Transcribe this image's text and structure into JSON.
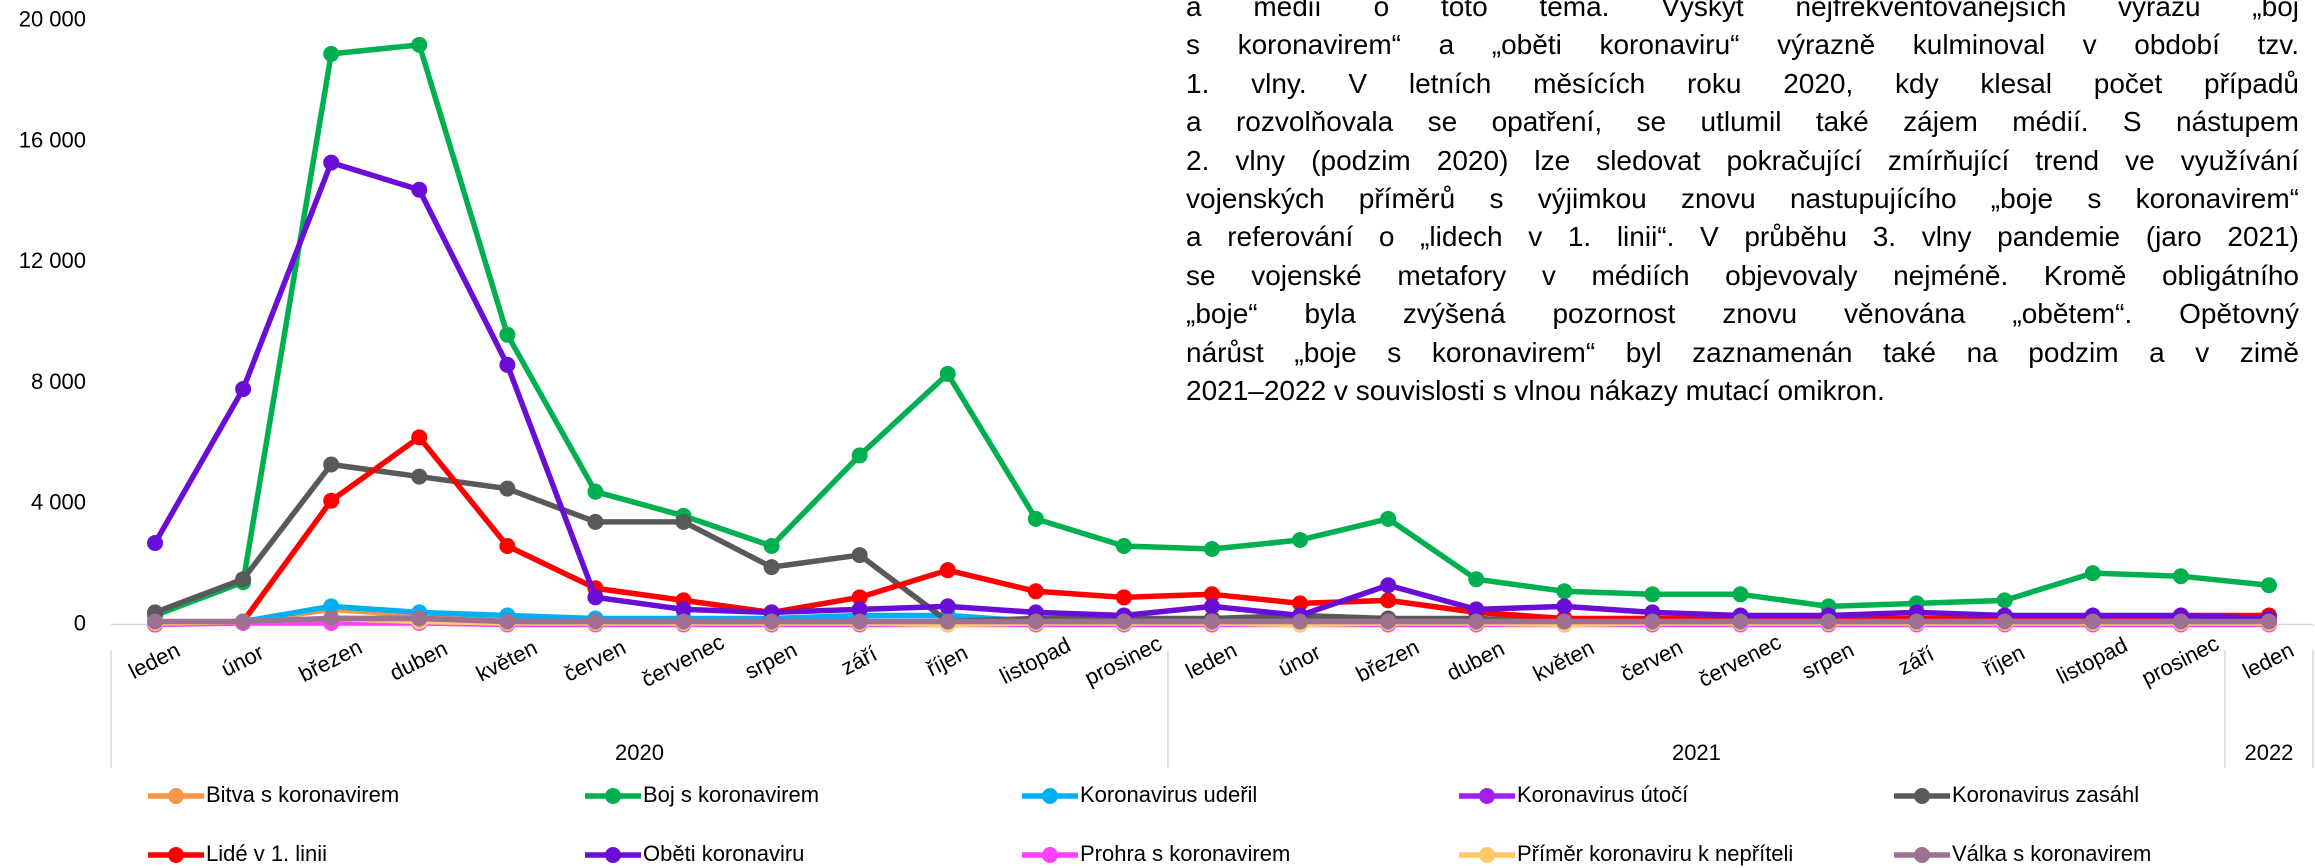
{
  "chart_data": {
    "type": "line",
    "groups": [
      {
        "label": "2020",
        "categories": [
          "leden",
          "únor",
          "březen",
          "duben",
          "květen",
          "červen",
          "červenec",
          "srpen",
          "září",
          "říjen",
          "listopad",
          "prosinec"
        ]
      },
      {
        "label": "2021",
        "categories": [
          "leden",
          "únor",
          "březen",
          "duben",
          "květen",
          "červen",
          "červenec",
          "srpen",
          "září",
          "říjen",
          "listopad",
          "prosinec"
        ]
      },
      {
        "label": "2022",
        "categories": [
          "leden"
        ]
      }
    ],
    "ylim": [
      0,
      20000
    ],
    "yticks": [
      {
        "value": 0,
        "label": "0"
      },
      {
        "value": 4000,
        "label": "4 000"
      },
      {
        "value": 8000,
        "label": "8 000"
      },
      {
        "value": 12000,
        "label": "12 000"
      },
      {
        "value": 16000,
        "label": "16 000"
      },
      {
        "value": 20000,
        "label": "20 000"
      }
    ],
    "grid": false,
    "legend": "bottom",
    "series": [
      {
        "name": "Bitva s koronavirem",
        "color": "#f79646",
        "values": [
          0,
          100,
          500,
          300,
          100,
          50,
          50,
          50,
          50,
          50,
          50,
          50,
          50,
          50,
          50,
          50,
          50,
          50,
          50,
          50,
          50,
          50,
          50,
          50,
          50
        ]
      },
      {
        "name": "Boj s koronavirem",
        "color": "#00b050",
        "values": [
          300,
          1400,
          18900,
          19200,
          9600,
          4400,
          3600,
          2600,
          5600,
          8300,
          3500,
          2600,
          2500,
          2800,
          3500,
          1500,
          1100,
          1000,
          1000,
          600,
          700,
          800,
          1700,
          1600,
          1300
        ]
      },
      {
        "name": "Koronavirus udeřil",
        "color": "#00b0f0",
        "values": [
          0,
          100,
          600,
          400,
          300,
          200,
          200,
          200,
          300,
          300,
          100,
          100,
          100,
          100,
          100,
          100,
          100,
          100,
          100,
          100,
          100,
          100,
          100,
          100,
          100
        ]
      },
      {
        "name": "Koronavirus útočí",
        "color": "#a020f0",
        "values": [
          0,
          100,
          200,
          200,
          100,
          100,
          100,
          100,
          100,
          100,
          100,
          100,
          100,
          100,
          100,
          100,
          100,
          100,
          100,
          100,
          100,
          100,
          100,
          100,
          100
        ]
      },
      {
        "name": "Koronavirus zasáhl",
        "color": "#595959",
        "values": [
          400,
          1500,
          5300,
          4900,
          4500,
          3400,
          3400,
          1900,
          2300,
          100,
          200,
          200,
          200,
          300,
          200,
          200,
          100,
          100,
          100,
          100,
          100,
          100,
          100,
          100,
          100
        ]
      },
      {
        "name": "Lidé v 1. linii",
        "color": "#ff0000",
        "values": [
          0,
          100,
          4100,
          6200,
          2600,
          1200,
          800,
          400,
          900,
          1800,
          1100,
          900,
          1000,
          700,
          800,
          400,
          200,
          200,
          200,
          200,
          200,
          200,
          200,
          300,
          300
        ]
      },
      {
        "name": "Oběti koronaviru",
        "color": "#6a0dd6",
        "values": [
          2700,
          7800,
          15300,
          14400,
          8600,
          900,
          500,
          400,
          500,
          600,
          400,
          300,
          600,
          300,
          1300,
          500,
          600,
          400,
          300,
          300,
          400,
          300,
          300,
          300,
          200
        ]
      },
      {
        "name": "Prohra s koronavirem",
        "color": "#ff40ff",
        "values": [
          0,
          50,
          50,
          50,
          0,
          0,
          0,
          0,
          0,
          0,
          0,
          0,
          0,
          0,
          0,
          0,
          0,
          0,
          0,
          0,
          0,
          0,
          0,
          0,
          0
        ]
      },
      {
        "name": "Příměr koronaviru k nepříteli",
        "color": "#ffc966",
        "values": [
          50,
          100,
          200,
          100,
          50,
          50,
          50,
          50,
          50,
          0,
          50,
          50,
          50,
          0,
          50,
          50,
          0,
          50,
          50,
          50,
          50,
          50,
          50,
          50,
          50
        ]
      },
      {
        "name": "Válka s koronavirem",
        "color": "#9e7092",
        "values": [
          100,
          100,
          200,
          200,
          100,
          100,
          100,
          100,
          100,
          100,
          100,
          100,
          100,
          100,
          100,
          100,
          100,
          100,
          100,
          100,
          100,
          100,
          100,
          100,
          100
        ]
      }
    ]
  },
  "text": {
    "lines": [
      "a médií o toto téma. Výskyt nejfrekventovanějších výrazů „boj",
      "s koronavirem“ a „oběti koronaviru“ výrazně kulminoval v období tzv.",
      "1. vlny. V letních měsících roku 2020, kdy klesal počet případů",
      "a rozvolňovala se opatření, se utlumil také zájem médií. S nástupem",
      "2. vlny (podzim 2020) lze sledovat pokračující zmírňující trend ve využívání",
      "vojenských příměrů s výjimkou znovu nastupujícího „boje s koronavirem“",
      "a referování o „lidech v 1. linii“. V průběhu 3. vlny pandemie (jaro 2021)",
      "se vojenské metafory v médiích objevovaly nejméně. Kromě obligátního",
      "„boje“ byla zvýšená pozornost znovu věnována „obětem“. Opětovný",
      "nárůst „boje s koronavirem“ byl zaznamenán také na podzim a v zimě",
      "2021–2022 v souvislosti s vlnou nákazy mutací omikron."
    ]
  }
}
